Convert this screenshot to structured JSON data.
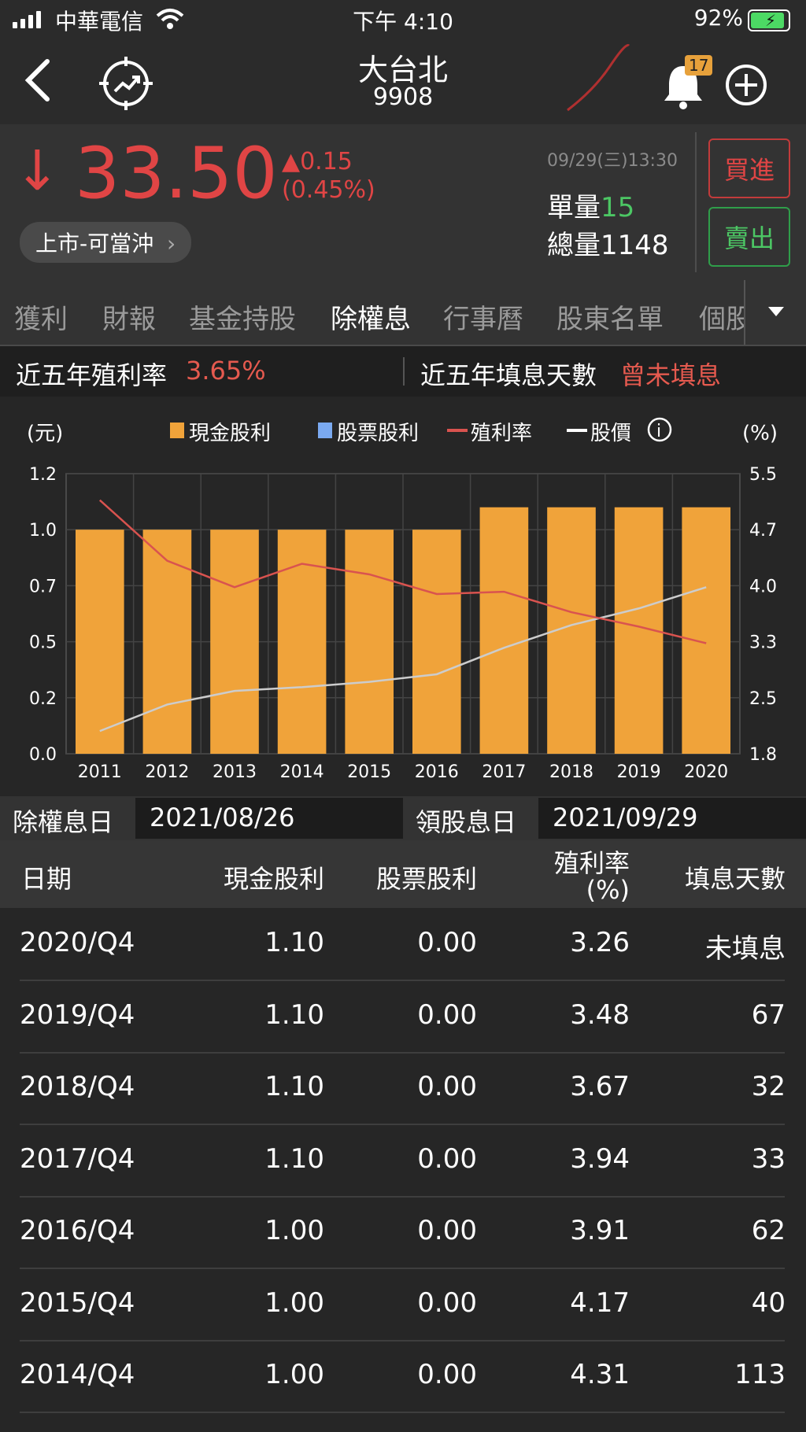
{
  "status": {
    "carrier": "中華電信",
    "time": "下午 4:10",
    "battery": "92%"
  },
  "header": {
    "back_icon": "chevron-left-icon",
    "title": "大台北",
    "code": "9908",
    "notification_count": "17"
  },
  "quote": {
    "arrow": "↓",
    "price": "33.50",
    "change": "▲0.15",
    "change_pct": "(0.45%)",
    "market_tag": "上市-可當沖",
    "datetime": "09/29(三)13:30",
    "unit_volume_label": "單量",
    "unit_volume": "15",
    "total_volume_label": "總量",
    "total_volume": "1148",
    "buy_label": "買進",
    "sell_label": "賣出"
  },
  "tabs": [
    "獲利",
    "財報",
    "基金持股",
    "除權息",
    "行事曆",
    "股東名單",
    "個股"
  ],
  "active_tab": "除權息",
  "summary": {
    "yield_label": "近五年殖利率",
    "yield_value": "3.65%",
    "fill_label": "近五年填息天數",
    "fill_value": "曾未填息"
  },
  "chart_data": {
    "type": "bar",
    "left_unit": "(元)",
    "right_unit": "(%)",
    "legend": [
      "現金股利",
      "股票股利",
      "殖利率",
      "股價"
    ],
    "categories": [
      "2011",
      "2012",
      "2013",
      "2014",
      "2015",
      "2016",
      "2017",
      "2018",
      "2019",
      "2020"
    ],
    "left_ticks": [
      "1.2",
      "1.0",
      "0.7",
      "0.5",
      "0.2",
      "0.0"
    ],
    "right_ticks": [
      "5.5",
      "4.7",
      "4.0",
      "3.3",
      "2.5",
      "1.8"
    ],
    "ylim_left": [
      0,
      1.25
    ],
    "ylim_right": [
      1.8,
      5.5
    ],
    "series": [
      {
        "name": "現金股利",
        "values": [
          1.0,
          1.0,
          1.0,
          1.0,
          1.0,
          1.0,
          1.1,
          1.1,
          1.1,
          1.1
        ]
      },
      {
        "name": "股票股利",
        "values": [
          0,
          0,
          0,
          0,
          0,
          0,
          0,
          0,
          0,
          0
        ]
      },
      {
        "name": "殖利率",
        "values": [
          5.15,
          4.35,
          4.0,
          4.31,
          4.17,
          3.91,
          3.94,
          3.67,
          3.48,
          3.26
        ]
      },
      {
        "name": "股價",
        "values": [
          2.1,
          2.45,
          2.63,
          2.68,
          2.75,
          2.85,
          3.2,
          3.5,
          3.72,
          4.0
        ]
      }
    ],
    "colors": {
      "cash": "#f0a33a",
      "stock": "#7aa9f0",
      "yield": "#d9534f",
      "price": "#cccccc"
    }
  },
  "dates": {
    "exdiv_label": "除權息日",
    "exdiv_value": "2021/08/26",
    "pay_label": "領股息日",
    "pay_value": "2021/09/29"
  },
  "table": {
    "headers": [
      "日期",
      "現金股利",
      "股票股利",
      "殖利率",
      "(%)",
      "填息天數"
    ],
    "rows": [
      [
        "2020/Q4",
        "1.10",
        "0.00",
        "3.26",
        "未填息"
      ],
      [
        "2019/Q4",
        "1.10",
        "0.00",
        "3.48",
        "67"
      ],
      [
        "2018/Q4",
        "1.10",
        "0.00",
        "3.67",
        "32"
      ],
      [
        "2017/Q4",
        "1.10",
        "0.00",
        "3.94",
        "33"
      ],
      [
        "2016/Q4",
        "1.00",
        "0.00",
        "3.91",
        "62"
      ],
      [
        "2015/Q4",
        "1.00",
        "0.00",
        "4.17",
        "40"
      ],
      [
        "2014/Q4",
        "1.00",
        "0.00",
        "4.31",
        "113"
      ]
    ]
  }
}
